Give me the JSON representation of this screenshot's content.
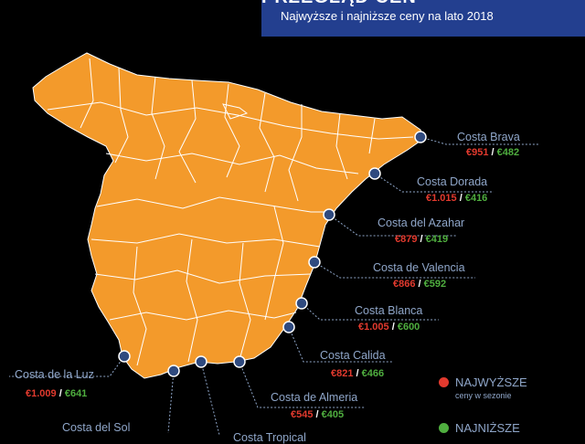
{
  "header": {
    "title": "PRZEGLĄD CEN",
    "subtitle": "Najwyższe i najniższe ceny na lato 2018"
  },
  "colors": {
    "land": "#f39a2b",
    "border": "#ffffff",
    "dot": "#2f4a7f",
    "high": "#e23a2e",
    "low": "#4fae3f",
    "label": "#8fa6c9",
    "header_bg": "#233f8f"
  },
  "coasts": [
    {
      "name": "Costa Brava",
      "high": "€951",
      "low": "€482"
    },
    {
      "name": "Costa Dorada",
      "high": "€1.015",
      "low": "€416"
    },
    {
      "name": "Costa del Azahar",
      "high": "€879",
      "low": "€419"
    },
    {
      "name": "Costa de Valencia",
      "high": "€866",
      "low": "€592"
    },
    {
      "name": "Costa Blanca",
      "high": "€1.005",
      "low": "€600"
    },
    {
      "name": "Costa Calida",
      "high": "€821",
      "low": "€466"
    },
    {
      "name": "Costa de Almeria",
      "high": "€545",
      "low": "€405"
    },
    {
      "name": "Costa de la Luz",
      "high": "€1.009",
      "low": "€641"
    },
    {
      "name": "Costa del Sol",
      "high": "",
      "low": ""
    },
    {
      "name": "Costa Tropical",
      "high": "",
      "low": ""
    }
  ],
  "legend": {
    "high_title": "NAJWYŻSZE",
    "high_sub": "ceny w sezonie",
    "low_title": "NAJNIŻSZE"
  }
}
